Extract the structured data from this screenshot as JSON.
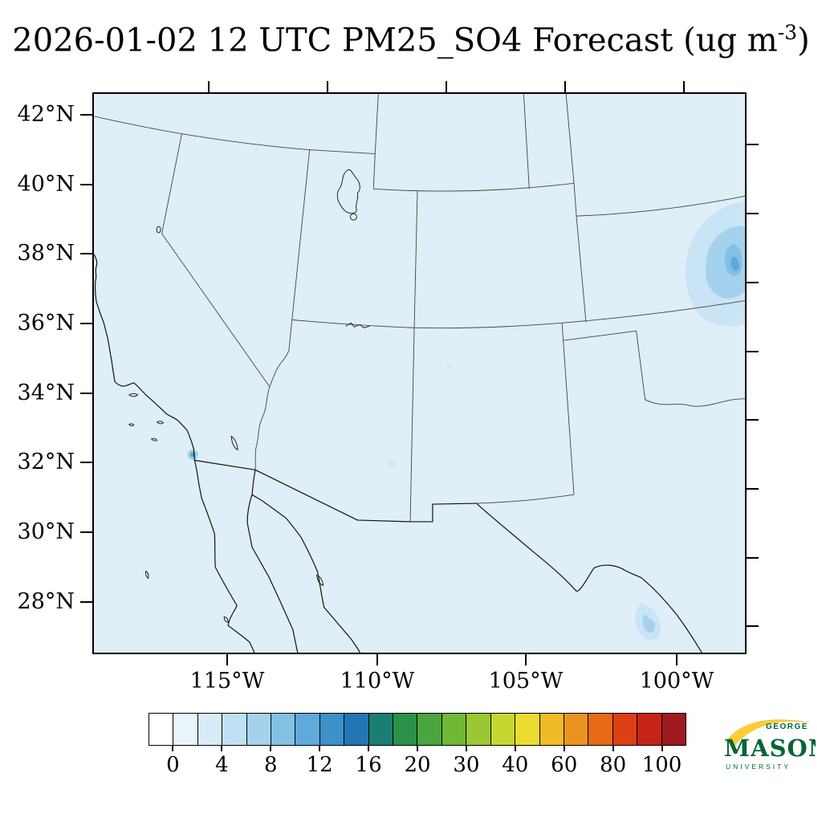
{
  "title": {
    "main": "2026-01-02 12 UTC PM25_SO4 Forecast (ug m",
    "superscript": "-3",
    "close": ")"
  },
  "axes": {
    "lat_labels": [
      "42°N",
      "40°N",
      "38°N",
      "36°N",
      "34°N",
      "32°N",
      "30°N",
      "28°N"
    ],
    "lon_labels": [
      "115°W",
      "110°W",
      "105°W",
      "100°W"
    ]
  },
  "colorbar": {
    "tick_labels": [
      "0",
      "4",
      "8",
      "12",
      "16",
      "20",
      "30",
      "40",
      "60",
      "80",
      "100"
    ],
    "cell_colors": [
      "#ffffff",
      "#eaf5fb",
      "#d8ecf8",
      "#c0e1f3",
      "#a4d2ec",
      "#83c1e4",
      "#5faada",
      "#3c91c9",
      "#2276b4",
      "#1a7f72",
      "#2c9148",
      "#4aa63c",
      "#70b836",
      "#9ac833",
      "#c4d731",
      "#eadd2f",
      "#f0bb26",
      "#ec931e",
      "#e66a17",
      "#dc3f13",
      "#c52417",
      "#9e1a1e"
    ]
  },
  "map": {
    "base_color": "#dfeef7",
    "plume_colors": {
      "light": "#c9e4f5",
      "medium": "#a4d2ec",
      "strong": "#83c1e4",
      "peak": "#5faada"
    }
  },
  "logo": {
    "line1": "GEORGE",
    "line2": "MASON",
    "line3": "UNIVERSITY",
    "green_color": "#006633",
    "gold_color": "#ffcc33"
  },
  "chart_data": {
    "type": "heatmap",
    "subtype": "geographic_forecast_map",
    "title": "2026-01-02 12 UTC PM25_SO4 Forecast (ug m-3)",
    "variable": "PM25_SO4",
    "units": "ug m-3",
    "valid_time": "2026-01-02 12 UTC",
    "region": "Southwestern United States and northern Mexico",
    "lat_ticks": [
      42,
      40,
      38,
      36,
      34,
      32,
      30,
      28
    ],
    "lon_ticks_deg_west": [
      115,
      110,
      105,
      100
    ],
    "colorbar_bounds": [
      0,
      4,
      8,
      12,
      16,
      20,
      30,
      40,
      60,
      80,
      100
    ],
    "legend_position": "bottom",
    "background_value": "approximately 0-1 over nearly the entire domain (pale blue)",
    "hotspots": [
      {
        "location": "San Diego / Tijuana coast (~32.7N, 117.2W)",
        "approx_value": "2-6"
      },
      {
        "location": "south-central Kansas near right edge (~37.5N, 98W)",
        "approx_value": "2-8"
      },
      {
        "location": "south Texas (~27.5N, 98.5W)",
        "approx_value": "1-4"
      },
      {
        "location": "southwest New Mexico (~32N, 108.5W)",
        "approx_value": "1-2"
      }
    ]
  }
}
